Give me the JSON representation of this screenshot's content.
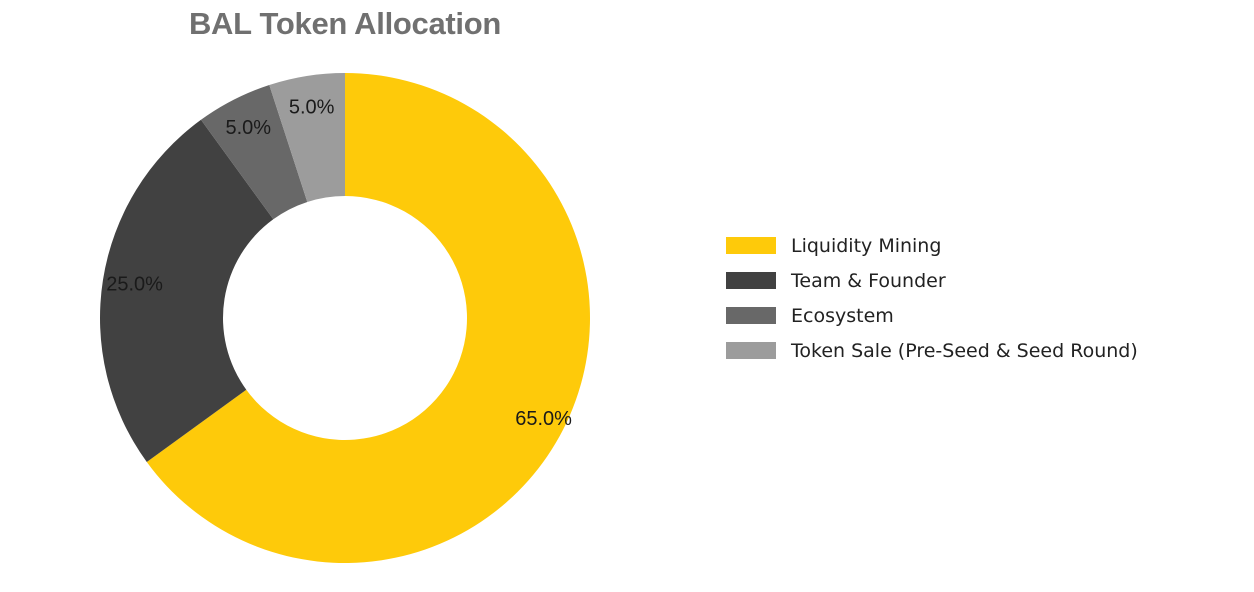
{
  "chart_data": {
    "type": "pie",
    "title": "BAL Token Allocation",
    "donut": true,
    "categories": [
      "Liquidity Mining",
      "Team & Founder",
      "Ecosystem",
      "Token Sale (Pre-Seed & Seed Round)"
    ],
    "values": [
      65.0,
      25.0,
      5.0,
      5.0
    ],
    "value_labels": [
      "65.0%",
      "25.0%",
      "5.0%",
      "5.0%"
    ],
    "colors": [
      "#FECA0A",
      "#414141",
      "#686868",
      "#9C9C9C"
    ],
    "legend_placement": "right"
  }
}
